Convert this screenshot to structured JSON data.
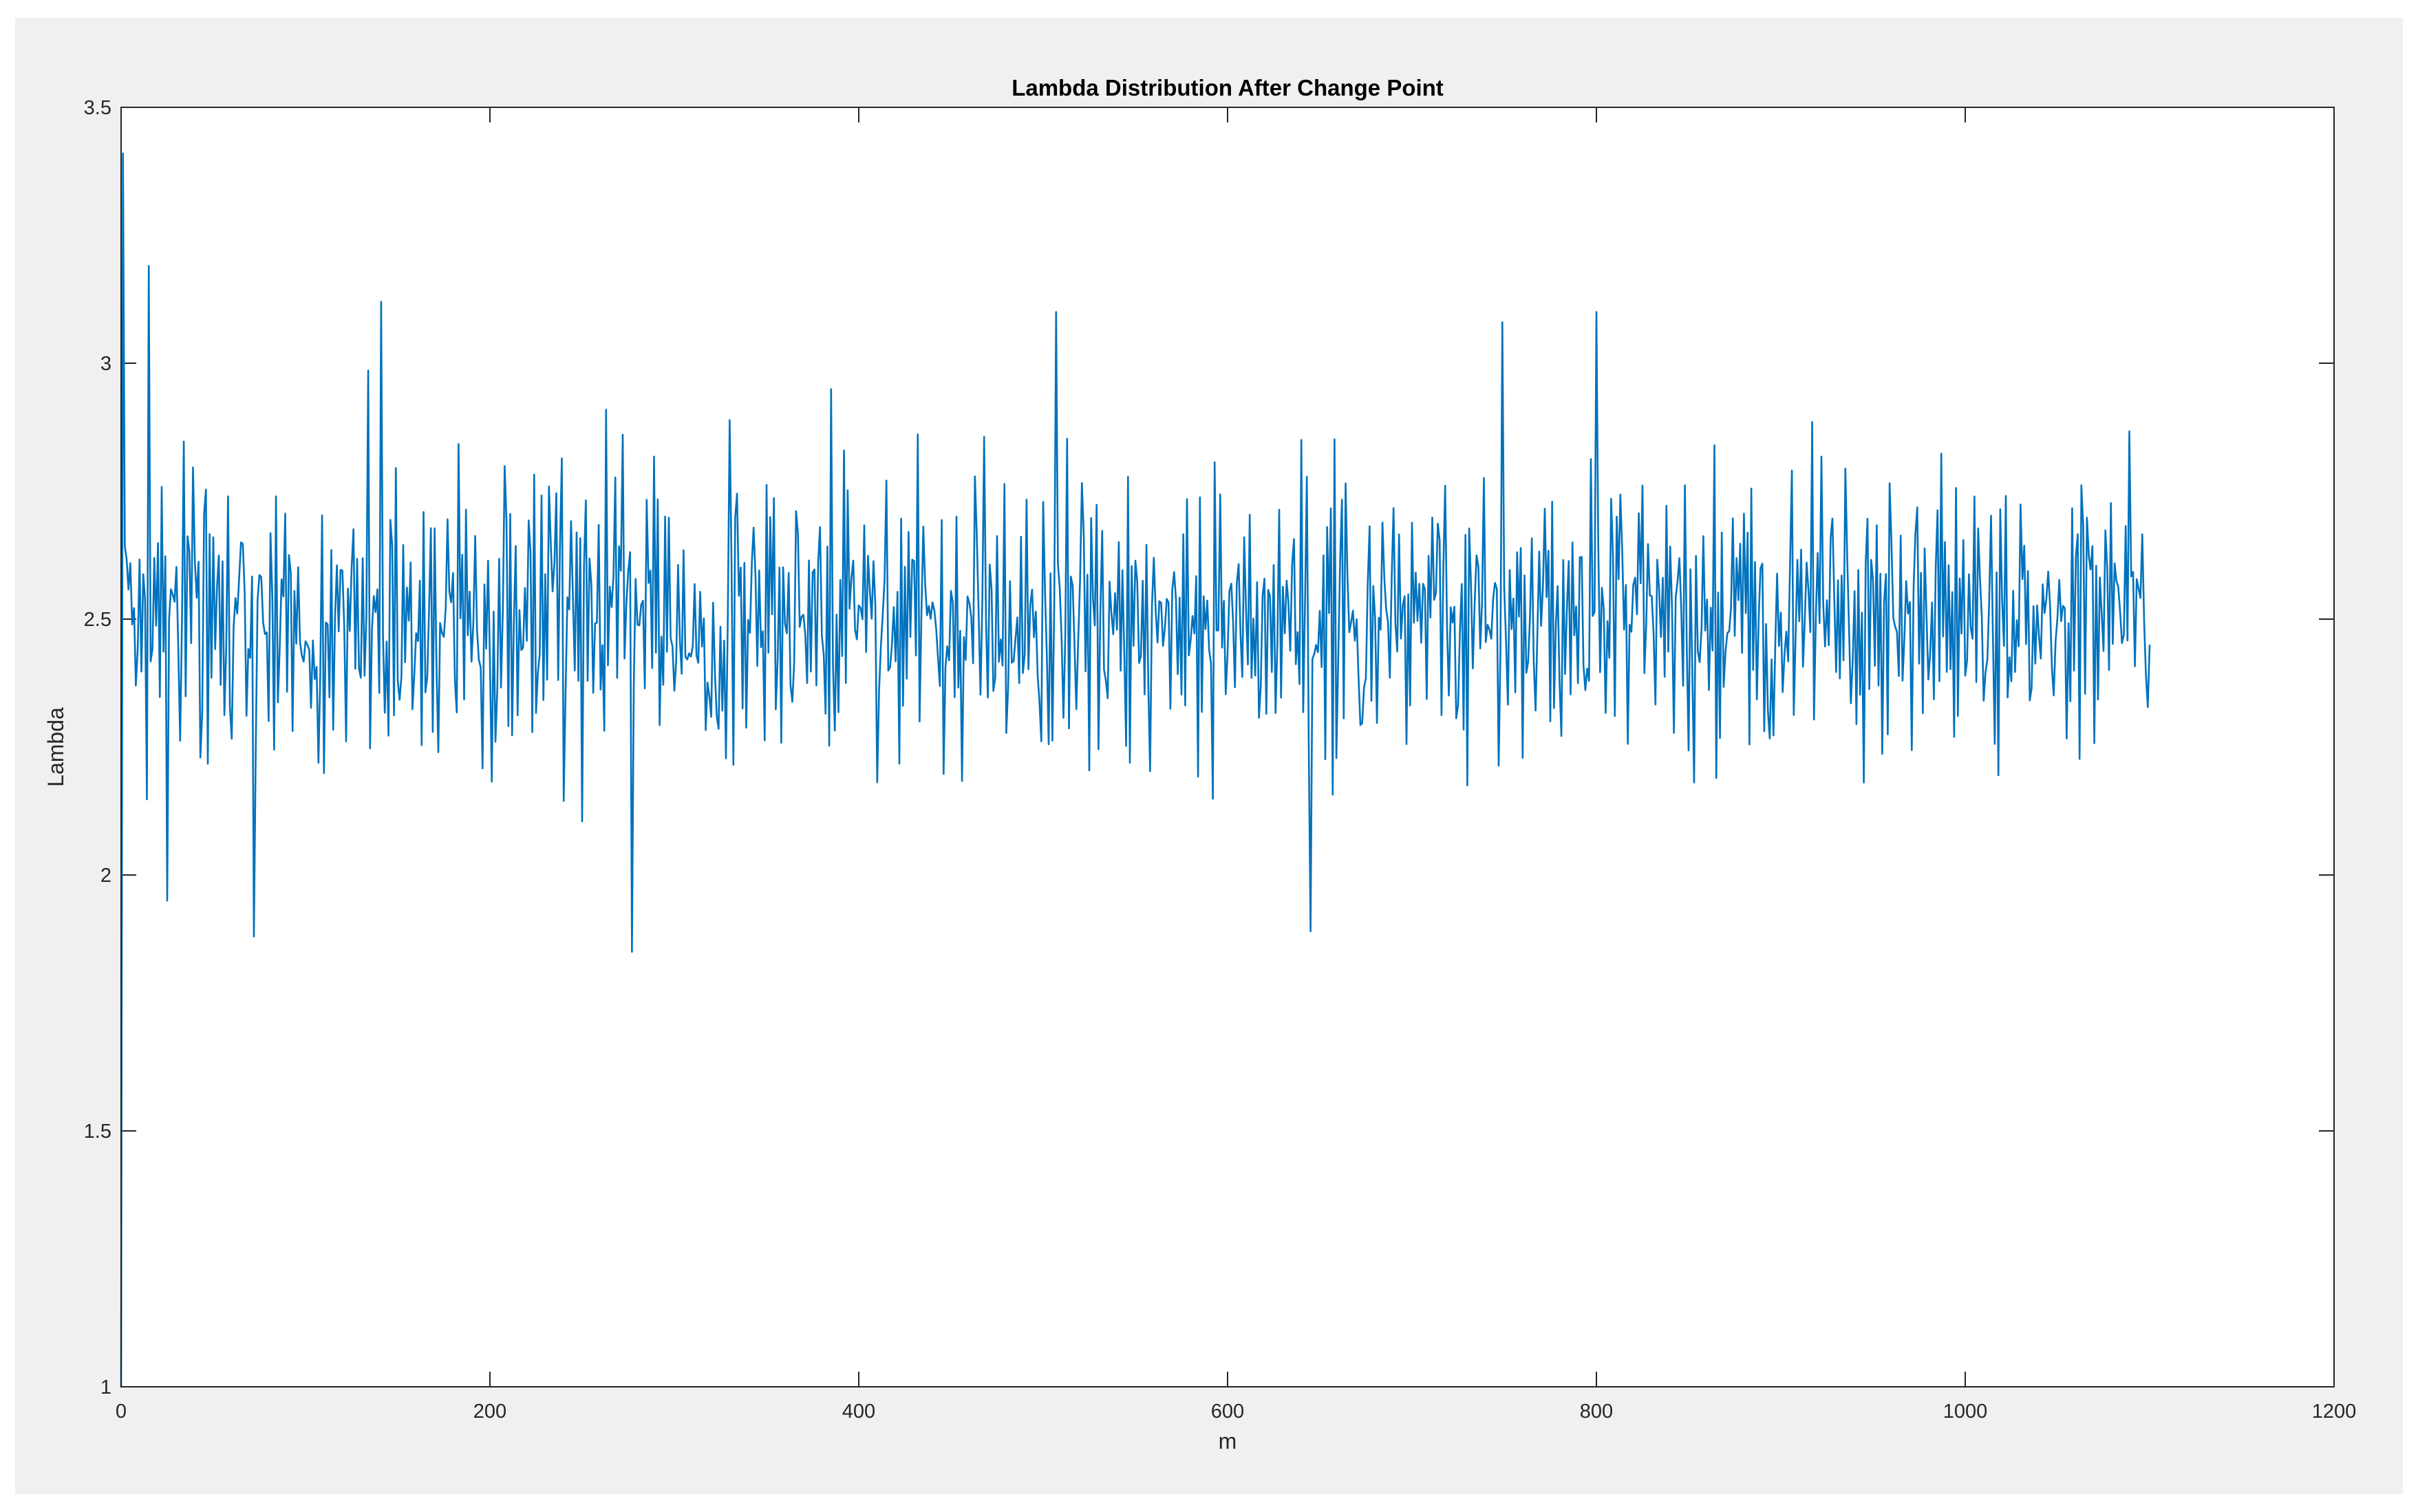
{
  "chart_data": {
    "type": "line",
    "title": "Lambda Distribution After Change Point",
    "xlabel": "m",
    "ylabel": "Lambda",
    "xlim": [
      0,
      1200
    ],
    "ylim": [
      1,
      3.5
    ],
    "xticks": [
      0,
      200,
      400,
      600,
      800,
      1000,
      1200
    ],
    "xtick_labels": [
      "0",
      "200",
      "400",
      "600",
      "800",
      "1000",
      "1200"
    ],
    "yticks": [
      1,
      1.5,
      2,
      2.5,
      3,
      3.5
    ],
    "ytick_labels": [
      "1",
      "1.5",
      "2",
      "2.5",
      "3",
      "3.5"
    ],
    "grid": false,
    "legend": "none",
    "line_color": "#0072BD",
    "series": [
      {
        "x_range": [
          0,
          1100
        ],
        "start_point": [
          0,
          1.0
        ],
        "peak_point": [
          1,
          3.41
        ],
        "end_point": [
          1100,
          2.45
        ],
        "mean": 2.5,
        "typical_band": [
          2.15,
          2.85
        ],
        "max_after_start": [
          141,
          3.12
        ],
        "notable_minima": [
          [
            25,
            1.95
          ],
          [
            72,
            1.88
          ],
          [
            277,
            1.85
          ],
          [
            645,
            1.89
          ]
        ],
        "notable_maxima": [
          [
            15,
            3.19
          ],
          [
            507,
            3.1
          ],
          [
            800,
            3.1
          ],
          [
            749,
            3.08
          ]
        ]
      }
    ]
  }
}
